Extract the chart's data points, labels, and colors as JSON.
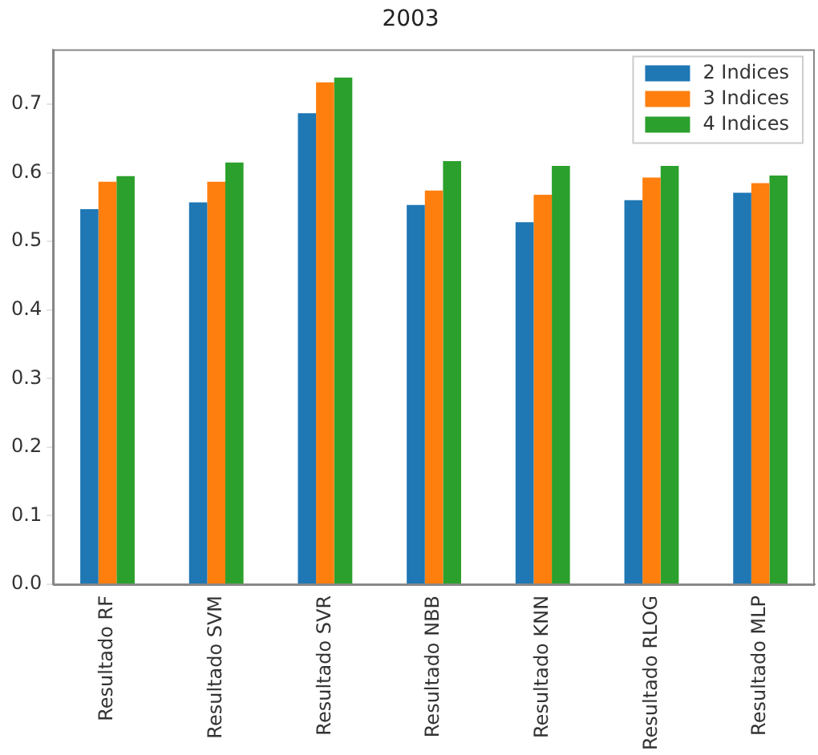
{
  "chart_data": {
    "type": "bar",
    "title": "2003",
    "categories": [
      "Resultado RF",
      "Resultado SVM",
      "Resultado SVR",
      "Resultado NBB",
      "Resultado KNN",
      "Resultado RLOG",
      "Resultado MLP"
    ],
    "series": [
      {
        "name": "2 Indices",
        "color": "#1f77b4",
        "values": [
          0.547,
          0.557,
          0.687,
          0.553,
          0.528,
          0.56,
          0.571
        ]
      },
      {
        "name": "3 Indices",
        "color": "#ff7f0e",
        "values": [
          0.587,
          0.587,
          0.732,
          0.574,
          0.568,
          0.593,
          0.585
        ]
      },
      {
        "name": "4 Indices",
        "color": "#2ca02c",
        "values": [
          0.595,
          0.615,
          0.739,
          0.617,
          0.61,
          0.61,
          0.596
        ]
      }
    ],
    "ylim": [
      0,
      0.78
    ],
    "yticks": [
      {
        "value": 0,
        "label": "0.0"
      },
      {
        "value": 0.1,
        "label": "0.1"
      },
      {
        "value": 0.2,
        "label": "0.2"
      },
      {
        "value": 0.3,
        "label": "0.3"
      },
      {
        "value": 0.4,
        "label": "0.4"
      },
      {
        "value": 0.5,
        "label": "0.5"
      },
      {
        "value": 0.6,
        "label": "0.6"
      },
      {
        "value": 0.7,
        "label": "0.7"
      }
    ],
    "grid": false,
    "legend": "top right"
  }
}
